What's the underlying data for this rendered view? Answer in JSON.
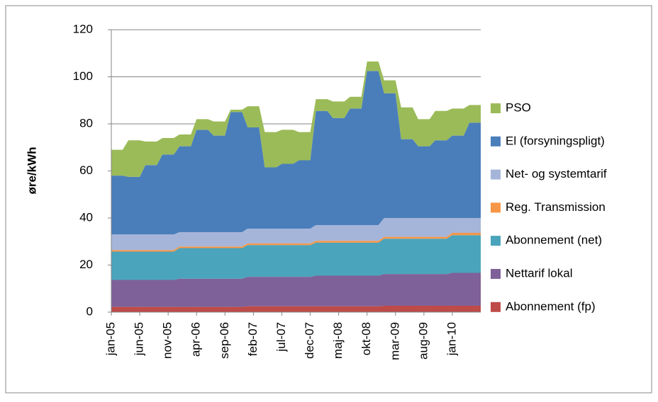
{
  "chart_data": {
    "type": "stacked-area",
    "ylabel": "øre/kWh",
    "categories": [
      "jan-05",
      null,
      null,
      null,
      null,
      "jun-05",
      null,
      null,
      null,
      null,
      "nov-05",
      null,
      null,
      null,
      null,
      "apr-06",
      null,
      null,
      null,
      null,
      "sep-06",
      null,
      null,
      null,
      null,
      "feb-07",
      null,
      null,
      null,
      null,
      "jul-07",
      null,
      null,
      null,
      null,
      "dec-07",
      null,
      null,
      null,
      null,
      "maj-08",
      null,
      null,
      null,
      null,
      "okt-08",
      null,
      null,
      null,
      null,
      "mar-09",
      null,
      null,
      null,
      null,
      "aug-09",
      null,
      null,
      null,
      null,
      "jan-10",
      null,
      null,
      null,
      null,
      null
    ],
    "ylim": [
      0,
      120
    ],
    "yticks": [
      0,
      20,
      40,
      60,
      80,
      100,
      120
    ],
    "grid": true,
    "series": [
      {
        "name": "Abonnement (fp)",
        "color": "#be4b48",
        "values": [
          2.2,
          2.2,
          2.2,
          2.2,
          2.2,
          2.2,
          2.2,
          2.2,
          2.2,
          2.2,
          2.2,
          2.2,
          2.2,
          2.2,
          2.2,
          2.2,
          2.2,
          2.2,
          2.2,
          2.2,
          2.2,
          2.2,
          2.2,
          2.2,
          2.5,
          2.5,
          2.5,
          2.5,
          2.5,
          2.5,
          2.5,
          2.5,
          2.5,
          2.5,
          2.5,
          2.5,
          2.5,
          2.5,
          2.5,
          2.5,
          2.5,
          2.5,
          2.5,
          2.5,
          2.5,
          2.5,
          2.5,
          2.5,
          2.7,
          2.7,
          2.7,
          2.7,
          2.7,
          2.7,
          2.7,
          2.7,
          2.7,
          2.7,
          2.7,
          2.7,
          2.7,
          2.7,
          2.7,
          2.7,
          2.7,
          2.7
        ]
      },
      {
        "name": "Nettarif lokal",
        "color": "#7f6199",
        "values": [
          11.5,
          11.5,
          11.5,
          11.5,
          11.5,
          11.5,
          11.5,
          11.5,
          11.5,
          11.5,
          11.5,
          11.5,
          12,
          12,
          12,
          12,
          12,
          12,
          12,
          12,
          12,
          12,
          12,
          12,
          12.5,
          12.5,
          12.5,
          12.5,
          12.5,
          12.5,
          12.5,
          12.5,
          12.5,
          12.5,
          12.5,
          12.5,
          13,
          13,
          13,
          13,
          13,
          13,
          13,
          13,
          13,
          13,
          13,
          13,
          13.5,
          13.5,
          13.5,
          13.5,
          13.5,
          13.5,
          13.5,
          13.5,
          13.5,
          13.5,
          13.5,
          13.5,
          14,
          14,
          14,
          14,
          14,
          14
        ]
      },
      {
        "name": "Abonnement (net)",
        "color": "#4aa4bb",
        "values": [
          12,
          12,
          12,
          12,
          12,
          12,
          12,
          12,
          12,
          12,
          12,
          12,
          13,
          13,
          13,
          13,
          13,
          13,
          13,
          13,
          13,
          13,
          13,
          13,
          13.5,
          13.5,
          13.5,
          13.5,
          13.5,
          13.5,
          13.5,
          13.5,
          13.5,
          13.5,
          13.5,
          13.5,
          14,
          14,
          14,
          14,
          14,
          14,
          14,
          14,
          14,
          14,
          14,
          14,
          15,
          15,
          15,
          15,
          15,
          15,
          15,
          15,
          15,
          15,
          15,
          15,
          16,
          16,
          16,
          16,
          16,
          16
        ]
      },
      {
        "name": "Reg. Transmission",
        "color": "#f79646",
        "values": [
          0.7,
          0.7,
          0.7,
          0.7,
          0.7,
          0.7,
          0.7,
          0.7,
          0.7,
          0.7,
          0.7,
          0.7,
          0.7,
          0.7,
          0.7,
          0.7,
          0.7,
          0.7,
          0.7,
          0.7,
          0.7,
          0.7,
          0.7,
          0.7,
          0.7,
          0.7,
          0.7,
          0.7,
          0.7,
          0.7,
          0.7,
          0.7,
          0.7,
          0.7,
          0.7,
          0.7,
          0.8,
          0.8,
          0.8,
          0.8,
          0.8,
          0.8,
          0.8,
          0.8,
          0.8,
          0.8,
          0.8,
          0.8,
          0.8,
          0.8,
          0.8,
          0.8,
          0.8,
          0.8,
          0.8,
          0.8,
          0.8,
          0.8,
          0.8,
          0.8,
          1,
          1,
          1,
          1,
          1,
          1
        ]
      },
      {
        "name": "Net- og systemtarif",
        "color": "#a5b5d9",
        "values": [
          6.6,
          6.6,
          6.6,
          6.6,
          6.6,
          6.6,
          6.6,
          6.6,
          6.6,
          6.6,
          6.6,
          6.6,
          6.1,
          6.1,
          6.1,
          6.1,
          6.1,
          6.1,
          6.1,
          6.1,
          6.1,
          6.1,
          6.1,
          6.1,
          6.3,
          6.3,
          6.3,
          6.3,
          6.3,
          6.3,
          6.3,
          6.3,
          6.3,
          6.3,
          6.3,
          6.3,
          6.7,
          6.7,
          6.7,
          6.7,
          6.7,
          6.7,
          6.7,
          6.7,
          6.7,
          6.7,
          6.7,
          6.7,
          8,
          8,
          8,
          8,
          8,
          8,
          8,
          8,
          8,
          8,
          8,
          8,
          6.3,
          6.3,
          6.3,
          6.3,
          6.3,
          6.3
        ]
      },
      {
        "name": "El (forsyningspligt)",
        "color": "#4a7ebb",
        "values": [
          25,
          25,
          25,
          24.5,
          24.5,
          24.5,
          29.5,
          29.5,
          29.5,
          34,
          34,
          34,
          36.5,
          36.5,
          36.5,
          43.5,
          43.5,
          43.5,
          41,
          41,
          41,
          51,
          51,
          51,
          43,
          43,
          43,
          26,
          26,
          26,
          27.5,
          27.5,
          27.5,
          29,
          29,
          29,
          48.5,
          48.5,
          48.5,
          45.5,
          45.5,
          45.5,
          49.5,
          49.5,
          49.5,
          65.5,
          65.5,
          65.5,
          53,
          53,
          53,
          33.5,
          33.5,
          33.5,
          30.5,
          30.5,
          30.5,
          33,
          33,
          33,
          35,
          35,
          35,
          40.5,
          40.5,
          40.5
        ]
      },
      {
        "name": "PSO",
        "color": "#9bbb59",
        "values": [
          11,
          11,
          11,
          15.5,
          15.5,
          15.5,
          10,
          10,
          10,
          7,
          7,
          7,
          5,
          5,
          5,
          4.5,
          4.5,
          4.5,
          6,
          6,
          6,
          1,
          1,
          1,
          9,
          9,
          9,
          15,
          15,
          15,
          14.5,
          14.5,
          14.5,
          12,
          12,
          12,
          5,
          5,
          5,
          7,
          7,
          7,
          5,
          5,
          5,
          4,
          4,
          4,
          5.5,
          5.5,
          5.5,
          13.5,
          13.5,
          13.5,
          11.5,
          11.5,
          11.5,
          12.5,
          12.5,
          12.5,
          11.5,
          11.5,
          11.5,
          7.5,
          7.5,
          7.5
        ]
      }
    ]
  }
}
